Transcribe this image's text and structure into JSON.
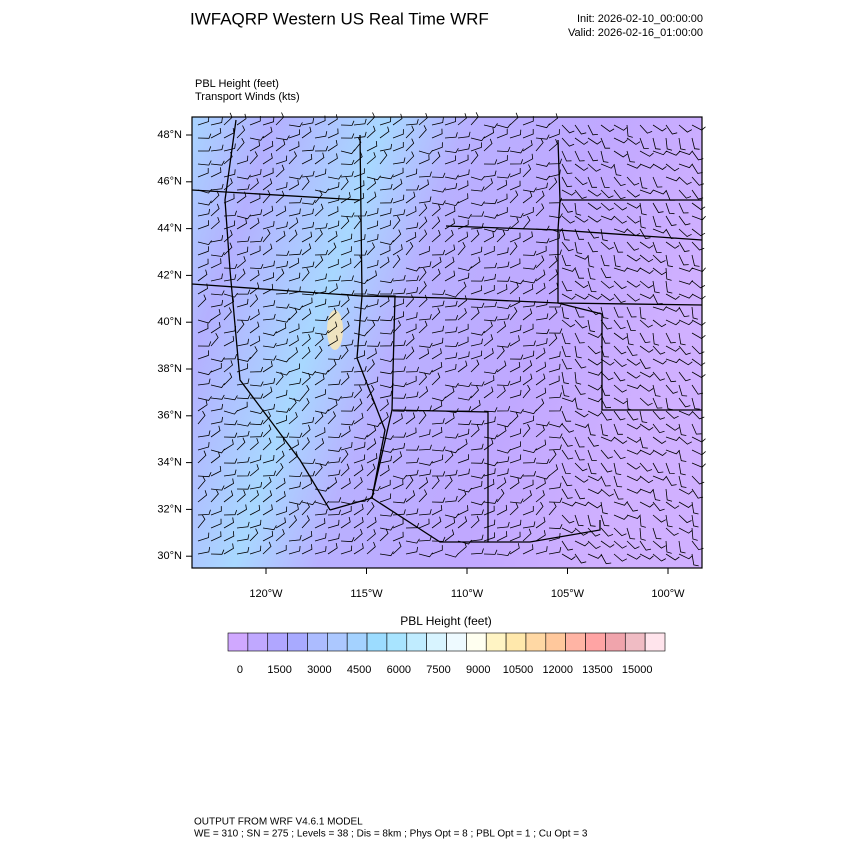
{
  "header": {
    "title": "IWFAQRP Western US Real Time WRF",
    "init": "Init: 2026-02-10_00:00:00",
    "valid": "Valid: 2026-02-16_01:00:00"
  },
  "map": {
    "field_label": "PBL Height   (feet)",
    "wind_label": "Transport Winds   (kts)",
    "lat_ticks": [
      "48°N",
      "46°N",
      "44°N",
      "42°N",
      "40°N",
      "38°N",
      "36°N",
      "34°N",
      "32°N",
      "30°N"
    ],
    "lon_ticks": [
      "120°W",
      "115°W",
      "110°W",
      "105°W",
      "100°W"
    ]
  },
  "colorbar": {
    "title": "PBL Height  (feet)",
    "labels": [
      "0",
      "1500",
      "3000",
      "4500",
      "6000",
      "7500",
      "9000",
      "10500",
      "12000",
      "13500",
      "15000"
    ],
    "colors": [
      "#d0a8ff",
      "#c0a8ff",
      "#b0a6ff",
      "#a8aaff",
      "#acbcff",
      "#acc8ff",
      "#a4d2ff",
      "#9cdcff",
      "#a8e4ff",
      "#c0ecff",
      "#d8f4ff",
      "#eefaff",
      "#fffff0",
      "#fff4c4",
      "#ffe8ac",
      "#ffd8a4",
      "#ffc89c",
      "#ffb4a4",
      "#ffa4a4",
      "#f0a4ac",
      "#f0bcc4",
      "#ffe4ec"
    ]
  },
  "footer": {
    "line1": "OUTPUT FROM WRF V4.6.1 MODEL",
    "line2": "WE = 310 ; SN = 275 ; Levels = 38 ; Dis = 8km ; Phys Opt = 8 ; PBL Opt = 1 ; Cu Opt = 3"
  }
}
